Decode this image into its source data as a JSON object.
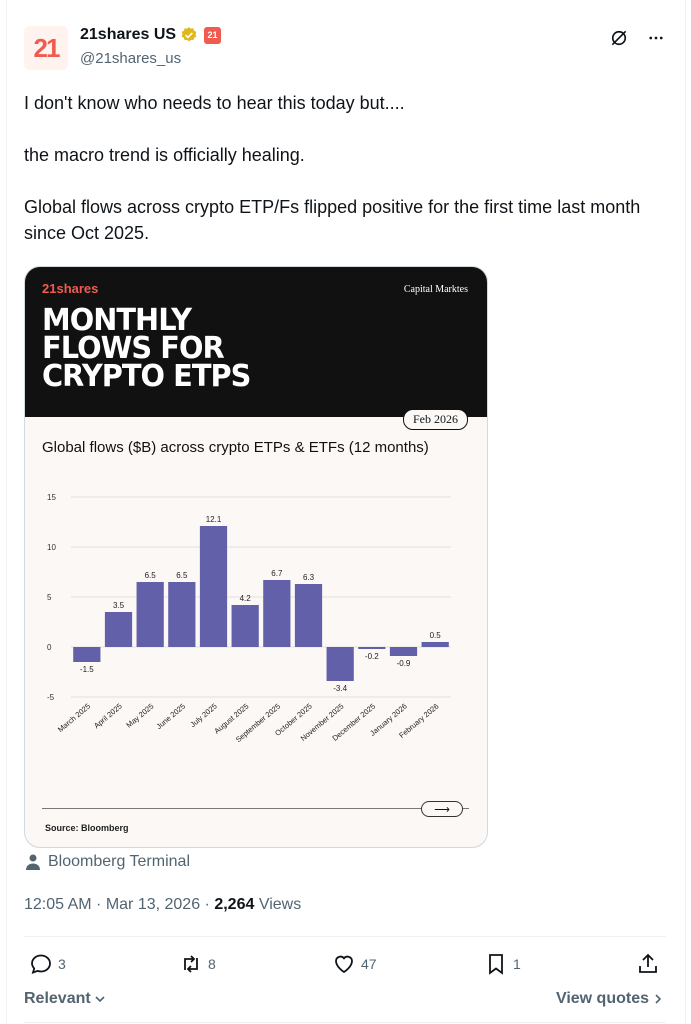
{
  "author": {
    "name": "21shares US",
    "handle": "@21shares_us",
    "avatar_text": "21",
    "org_badge_text": "21"
  },
  "post": {
    "line1": "I  don't know who needs to hear this today but....",
    "line2": "the macro trend is officially healing.",
    "line3": "Global flows across crypto ETP/Fs flipped positive for the first time last month since Oct 2025."
  },
  "card": {
    "brand": "21shares",
    "section": "Capital Marktes",
    "headline_1": "MONTHLY",
    "headline_2": "FLOWS FOR",
    "headline_3": "CRYPTO ETPS",
    "date": "Feb 2026",
    "chart_title": "Global flows ($B) across crypto ETPs & ETFs (12 months)",
    "source": "Source: Bloomberg"
  },
  "chart_data": {
    "type": "bar",
    "title": "Global flows ($B) across crypto ETPs & ETFs (12 months)",
    "categories": [
      "March 2025",
      "April 2025",
      "May 2025",
      "June 2025",
      "July 2025",
      "August 2025",
      "September 2025",
      "October 2025",
      "November 2025",
      "December 2025",
      "January 2026",
      "February 2026"
    ],
    "values": [
      -1.5,
      3.5,
      6.5,
      6.5,
      12.1,
      4.2,
      6.7,
      6.3,
      -3.4,
      -0.2,
      -0.9,
      0.5
    ],
    "value_labels": [
      "-1.5",
      "3.5",
      "6.5",
      "6.5",
      "12.1",
      "4.2",
      "6.7",
      "6.3",
      "-3.4",
      "-0.2",
      "-0.9",
      "0.5"
    ],
    "y_ticks": [
      "15",
      "10",
      "5",
      "0",
      "-5"
    ],
    "ylim": [
      -5,
      15
    ],
    "grid": true,
    "bar_color": "#6260a8"
  },
  "location": {
    "label": "Bloomberg Terminal"
  },
  "meta": {
    "time": "12:05 AM · Mar 13, 2026 · ",
    "views_count": "2,264",
    "views_label": " Views"
  },
  "actions": {
    "replies": "3",
    "reposts": "8",
    "likes": "47",
    "bookmarks": "1"
  },
  "footer": {
    "sort": "Relevant",
    "view_quotes": "View quotes"
  },
  "colors": {
    "brand": "#f15a4f",
    "verified": "#e2b719",
    "text_secondary": "#536471"
  }
}
